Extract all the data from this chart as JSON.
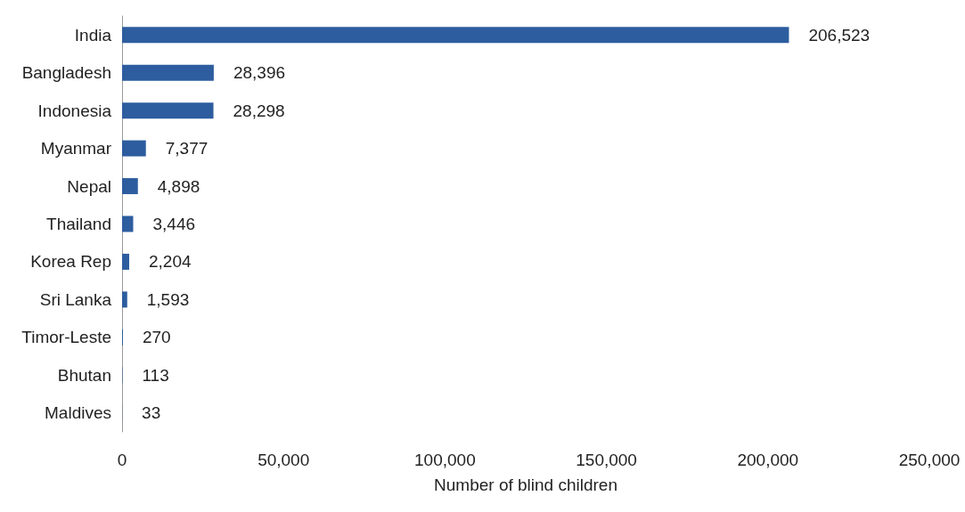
{
  "chart_data": {
    "type": "bar",
    "orientation": "horizontal",
    "xlabel": "Number of blind children",
    "categories": [
      "India",
      "Bangladesh",
      "Indonesia",
      "Myanmar",
      "Nepal",
      "Thailand",
      "Korea Rep",
      "Sri Lanka",
      "Timor-Leste",
      "Bhutan",
      "Maldives"
    ],
    "values": [
      206523,
      28396,
      28298,
      7377,
      4898,
      3446,
      2204,
      1593,
      270,
      113,
      33
    ],
    "value_labels": [
      "206,523",
      "28,396",
      "28,298",
      "7,377",
      "4,898",
      "3,446",
      "2,204",
      "1,593",
      "270",
      "113",
      "33"
    ],
    "color": "#2d5d9f",
    "xlim": [
      0,
      250000
    ],
    "xticks": [
      0,
      {
        "value": 50000,
        "label": "50,000"
      },
      {
        "value": 100000,
        "label": "100,000"
      },
      {
        "value": 150000,
        "label": "150,000"
      },
      {
        "value": 200000,
        "label": "200,000"
      },
      {
        "value": 250000,
        "label": "250,000"
      }
    ],
    "grid": false
  }
}
